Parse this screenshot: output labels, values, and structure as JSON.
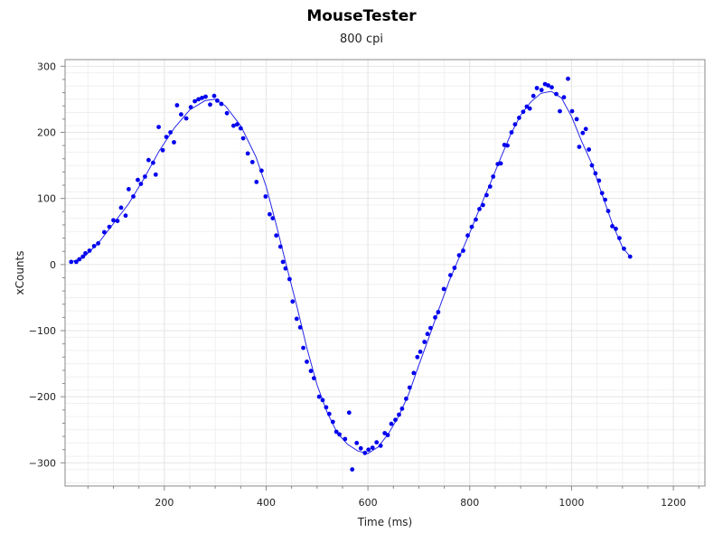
{
  "chart_data": {
    "type": "scatter",
    "title": "MouseTester",
    "subtitle": "800 cpi",
    "xlabel": "Time (ms)",
    "ylabel": "xCounts",
    "xlim": [
      5,
      1262
    ],
    "ylim": [
      -335,
      310
    ],
    "x_ticks": [
      200,
      400,
      600,
      800,
      1000,
      1200
    ],
    "y_ticks": [
      -300,
      -200,
      -100,
      0,
      100,
      200,
      300
    ],
    "grid": true,
    "colors": {
      "points": "#0000ee",
      "line": "#2828e8",
      "grid": "#e6e6e6",
      "axis": "#888888"
    },
    "series": [
      {
        "type": "scatter",
        "points": [
          [
            17,
            4
          ],
          [
            27,
            4
          ],
          [
            33,
            8
          ],
          [
            40,
            12
          ],
          [
            45,
            17
          ],
          [
            53,
            21
          ],
          [
            62,
            28
          ],
          [
            70,
            32
          ],
          [
            82,
            49
          ],
          [
            92,
            57
          ],
          [
            100,
            67
          ],
          [
            108,
            66
          ],
          [
            115,
            86
          ],
          [
            124,
            74
          ],
          [
            130,
            114
          ],
          [
            139,
            103
          ],
          [
            148,
            128
          ],
          [
            154,
            122
          ],
          [
            162,
            133
          ],
          [
            169,
            158
          ],
          [
            178,
            154
          ],
          [
            183,
            136
          ],
          [
            189,
            208
          ],
          [
            197,
            173
          ],
          [
            204,
            193
          ],
          [
            212,
            200
          ],
          [
            219,
            185
          ],
          [
            225,
            241
          ],
          [
            233,
            227
          ],
          [
            243,
            221
          ],
          [
            252,
            238
          ],
          [
            260,
            247
          ],
          [
            267,
            250
          ],
          [
            274,
            252
          ],
          [
            281,
            254
          ],
          [
            290,
            242
          ],
          [
            298,
            255
          ],
          [
            304,
            248
          ],
          [
            312,
            243
          ],
          [
            323,
            229
          ],
          [
            336,
            210
          ],
          [
            343,
            212
          ],
          [
            350,
            206
          ],
          [
            355,
            191
          ],
          [
            364,
            168
          ],
          [
            373,
            155
          ],
          [
            381,
            125
          ],
          [
            391,
            142
          ],
          [
            399,
            103
          ],
          [
            407,
            76
          ],
          [
            413,
            70
          ],
          [
            420,
            44
          ],
          [
            428,
            27
          ],
          [
            433,
            4
          ],
          [
            438,
            -6
          ],
          [
            446,
            -22
          ],
          [
            452,
            -56
          ],
          [
            460,
            -82
          ],
          [
            467,
            -95
          ],
          [
            473,
            -126
          ],
          [
            480,
            -147
          ],
          [
            488,
            -161
          ],
          [
            494,
            -172
          ],
          [
            504,
            -200
          ],
          [
            511,
            -205
          ],
          [
            518,
            -216
          ],
          [
            524,
            -226
          ],
          [
            531,
            -238
          ],
          [
            538,
            -253
          ],
          [
            544,
            -257
          ],
          [
            555,
            -264
          ],
          [
            563,
            -224
          ],
          [
            569,
            -310
          ],
          [
            578,
            -270
          ],
          [
            586,
            -278
          ],
          [
            594,
            -285
          ],
          [
            601,
            -280
          ],
          [
            609,
            -277
          ],
          [
            617,
            -269
          ],
          [
            625,
            -274
          ],
          [
            633,
            -255
          ],
          [
            639,
            -258
          ],
          [
            646,
            -241
          ],
          [
            654,
            -235
          ],
          [
            661,
            -227
          ],
          [
            667,
            -218
          ],
          [
            675,
            -203
          ],
          [
            682,
            -186
          ],
          [
            690,
            -164
          ],
          [
            697,
            -140
          ],
          [
            703,
            -132
          ],
          [
            711,
            -117
          ],
          [
            717,
            -105
          ],
          [
            723,
            -96
          ],
          [
            732,
            -80
          ],
          [
            738,
            -72
          ],
          [
            749,
            -37
          ],
          [
            762,
            -16
          ],
          [
            770,
            -5
          ],
          [
            779,
            14
          ],
          [
            787,
            21
          ],
          [
            796,
            44
          ],
          [
            804,
            57
          ],
          [
            812,
            68
          ],
          [
            819,
            84
          ],
          [
            826,
            90
          ],
          [
            833,
            105
          ],
          [
            840,
            118
          ],
          [
            846,
            133
          ],
          [
            855,
            152
          ],
          [
            861,
            153
          ],
          [
            868,
            181
          ],
          [
            874,
            180
          ],
          [
            882,
            200
          ],
          [
            889,
            212
          ],
          [
            897,
            222
          ],
          [
            905,
            231
          ],
          [
            912,
            239
          ],
          [
            918,
            236
          ],
          [
            925,
            255
          ],
          [
            932,
            267
          ],
          [
            941,
            264
          ],
          [
            948,
            273
          ],
          [
            954,
            271
          ],
          [
            961,
            268
          ],
          [
            970,
            258
          ],
          [
            977,
            232
          ],
          [
            985,
            253
          ],
          [
            993,
            281
          ],
          [
            1001,
            232
          ],
          [
            1010,
            220
          ],
          [
            1015,
            178
          ],
          [
            1022,
            199
          ],
          [
            1028,
            205
          ],
          [
            1034,
            174
          ],
          [
            1040,
            150
          ],
          [
            1047,
            138
          ],
          [
            1054,
            127
          ],
          [
            1060,
            108
          ],
          [
            1066,
            98
          ],
          [
            1072,
            81
          ],
          [
            1080,
            58
          ],
          [
            1087,
            54
          ],
          [
            1094,
            40
          ],
          [
            1103,
            24
          ],
          [
            1115,
            12
          ]
        ]
      },
      {
        "type": "line",
        "points": [
          [
            17,
            4
          ],
          [
            40,
            10
          ],
          [
            70,
            32
          ],
          [
            100,
            62
          ],
          [
            130,
            92
          ],
          [
            160,
            130
          ],
          [
            190,
            172
          ],
          [
            220,
            207
          ],
          [
            250,
            234
          ],
          [
            280,
            248
          ],
          [
            300,
            250
          ],
          [
            320,
            240
          ],
          [
            350,
            210
          ],
          [
            380,
            163
          ],
          [
            400,
            118
          ],
          [
            420,
            60
          ],
          [
            440,
            -2
          ],
          [
            460,
            -62
          ],
          [
            480,
            -126
          ],
          [
            500,
            -182
          ],
          [
            520,
            -224
          ],
          [
            540,
            -255
          ],
          [
            560,
            -272
          ],
          [
            580,
            -282
          ],
          [
            600,
            -286
          ],
          [
            620,
            -276
          ],
          [
            640,
            -256
          ],
          [
            660,
            -230
          ],
          [
            680,
            -196
          ],
          [
            700,
            -152
          ],
          [
            720,
            -110
          ],
          [
            740,
            -66
          ],
          [
            760,
            -24
          ],
          [
            780,
            12
          ],
          [
            800,
            48
          ],
          [
            820,
            86
          ],
          [
            840,
            122
          ],
          [
            860,
            160
          ],
          [
            880,
            196
          ],
          [
            900,
            226
          ],
          [
            920,
            246
          ],
          [
            940,
            259
          ],
          [
            960,
            262
          ],
          [
            980,
            252
          ],
          [
            1000,
            224
          ],
          [
            1020,
            186
          ],
          [
            1040,
            152
          ],
          [
            1060,
            106
          ],
          [
            1080,
            62
          ],
          [
            1100,
            26
          ],
          [
            1115,
            12
          ]
        ]
      }
    ]
  }
}
